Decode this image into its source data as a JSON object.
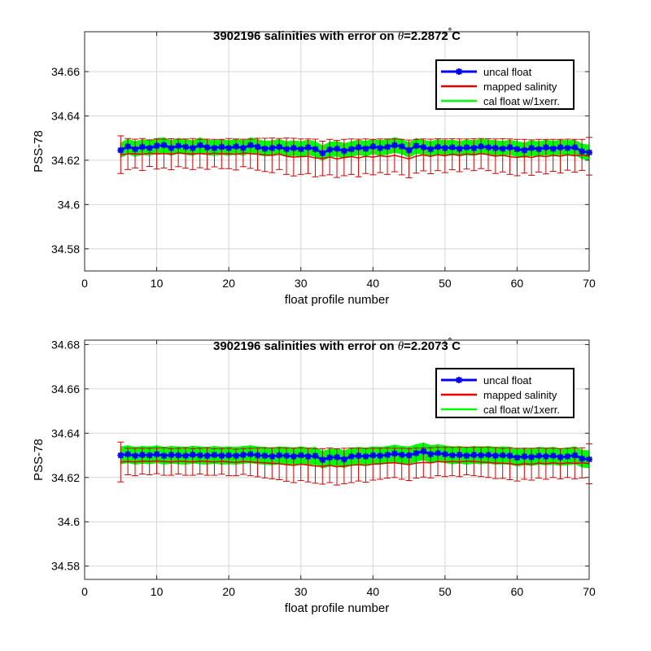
{
  "chart_data": [
    {
      "type": "line",
      "title_prefix": "3902196 salinities with error on ",
      "title_symbol": "θ",
      "title_value": "=2.2872",
      "title_degree": "°",
      "title_unit": "C",
      "xlabel": "float profile number",
      "ylabel": "PSS-78",
      "xlim": [
        0,
        70
      ],
      "ylim": [
        34.57,
        34.678
      ],
      "xticks": [
        0,
        10,
        20,
        30,
        40,
        50,
        60,
        70
      ],
      "xtick_labels": [
        "0",
        "10",
        "20",
        "30",
        "40",
        "50",
        "60",
        "70"
      ],
      "yticks": [
        34.58,
        34.6,
        34.62,
        34.64,
        34.66
      ],
      "ytick_labels": [
        "34.58",
        "34.6",
        "34.62",
        "34.64",
        "34.66"
      ],
      "grid": true,
      "legend_position": "top-right",
      "legend": [
        "uncal float",
        "mapped salinity",
        "cal float w/1xerr."
      ],
      "colors": {
        "uncal": "#0000ff",
        "mapped": "#e60000",
        "cal": "#00ff00"
      },
      "x": [
        5,
        6,
        7,
        8,
        9,
        10,
        11,
        12,
        13,
        14,
        15,
        16,
        17,
        18,
        19,
        20,
        21,
        22,
        23,
        24,
        25,
        26,
        27,
        28,
        29,
        30,
        31,
        32,
        33,
        34,
        35,
        36,
        37,
        38,
        39,
        40,
        41,
        42,
        43,
        44,
        45,
        46,
        47,
        48,
        49,
        50,
        51,
        52,
        53,
        54,
        55,
        56,
        57,
        58,
        59,
        60,
        61,
        62,
        63,
        64,
        65,
        66,
        67,
        68,
        69,
        70
      ],
      "uncal_float": [
        34.6245,
        34.6262,
        34.625,
        34.626,
        34.6255,
        34.6265,
        34.6268,
        34.6255,
        34.6265,
        34.626,
        34.6255,
        34.6268,
        34.6258,
        34.6255,
        34.626,
        34.6255,
        34.6262,
        34.6255,
        34.6268,
        34.626,
        34.6252,
        34.6255,
        34.626,
        34.625,
        34.6255,
        34.625,
        34.6258,
        34.625,
        34.6232,
        34.6248,
        34.6252,
        34.6242,
        34.625,
        34.6258,
        34.6252,
        34.6262,
        34.6255,
        34.626,
        34.6268,
        34.6262,
        34.6245,
        34.6265,
        34.6258,
        34.625,
        34.626,
        34.6255,
        34.6258,
        34.6252,
        34.6258,
        34.6255,
        34.6262,
        34.6258,
        34.6255,
        34.6252,
        34.6258,
        34.625,
        34.6245,
        34.6255,
        34.625,
        34.6258,
        34.6252,
        34.6258,
        34.6255,
        34.6258,
        34.624,
        34.6235
      ],
      "mapped_salinity": [
        34.6225,
        34.6228,
        34.623,
        34.6226,
        34.6232,
        34.6228,
        34.623,
        34.6227,
        34.6233,
        34.623,
        34.6228,
        34.623,
        34.6227,
        34.6232,
        34.6228,
        34.623,
        34.6226,
        34.6233,
        34.6229,
        34.6227,
        34.6224,
        34.6222,
        34.6228,
        34.6218,
        34.6214,
        34.6216,
        34.6218,
        34.621,
        34.6208,
        34.6214,
        34.6206,
        34.6212,
        34.6216,
        34.621,
        34.6218,
        34.6214,
        34.622,
        34.6216,
        34.6222,
        34.6214,
        34.6206,
        34.6218,
        34.6224,
        34.6217,
        34.6225,
        34.622,
        34.6227,
        34.6222,
        34.6228,
        34.6225,
        34.623,
        34.6225,
        34.6218,
        34.6222,
        34.6216,
        34.6212,
        34.6218,
        34.6212,
        34.622,
        34.6216,
        34.6222,
        34.6218,
        34.6225,
        34.622,
        34.6224,
        34.6218
      ],
      "cal_float": [
        34.6245,
        34.6262,
        34.625,
        34.626,
        34.6255,
        34.6265,
        34.6268,
        34.6255,
        34.6265,
        34.626,
        34.6255,
        34.6268,
        34.6258,
        34.6255,
        34.626,
        34.6255,
        34.6262,
        34.6255,
        34.6268,
        34.626,
        34.6252,
        34.6255,
        34.626,
        34.625,
        34.6255,
        34.625,
        34.6258,
        34.625,
        34.6232,
        34.6248,
        34.6252,
        34.6242,
        34.625,
        34.6258,
        34.6252,
        34.6262,
        34.6255,
        34.626,
        34.6268,
        34.6262,
        34.6245,
        34.6265,
        34.6258,
        34.625,
        34.626,
        34.6255,
        34.6258,
        34.6252,
        34.6258,
        34.6255,
        34.6262,
        34.6258,
        34.6255,
        34.6252,
        34.6258,
        34.625,
        34.6245,
        34.6255,
        34.625,
        34.6258,
        34.6252,
        34.6258,
        34.6255,
        34.6258,
        34.624,
        34.6235
      ],
      "cal_error": 0.0035,
      "mapped_error": [
        0.0085,
        0.007,
        0.0065,
        0.0072,
        0.006,
        0.0068,
        0.0065,
        0.007,
        0.0062,
        0.0066,
        0.007,
        0.0064,
        0.0068,
        0.0062,
        0.0066,
        0.0068,
        0.007,
        0.0062,
        0.0066,
        0.0072,
        0.0075,
        0.0078,
        0.007,
        0.0082,
        0.0085,
        0.008,
        0.0078,
        0.0085,
        0.0078,
        0.008,
        0.0084,
        0.0082,
        0.008,
        0.0085,
        0.0078,
        0.008,
        0.0076,
        0.008,
        0.0074,
        0.008,
        0.0085,
        0.0076,
        0.0072,
        0.0078,
        0.0072,
        0.0076,
        0.007,
        0.0074,
        0.0068,
        0.0072,
        0.0068,
        0.0072,
        0.0078,
        0.0075,
        0.008,
        0.0082,
        0.0076,
        0.008,
        0.0074,
        0.0078,
        0.0072,
        0.0076,
        0.007,
        0.0074,
        0.007,
        0.0085
      ]
    },
    {
      "type": "line",
      "title_prefix": "3902196 salinities with error on ",
      "title_symbol": "θ",
      "title_value": "=2.2073",
      "title_degree": "°",
      "title_unit": "C",
      "xlabel": "float profile number",
      "ylabel": "PSS-78",
      "xlim": [
        0,
        70
      ],
      "ylim": [
        34.574,
        34.682
      ],
      "xticks": [
        0,
        10,
        20,
        30,
        40,
        50,
        60,
        70
      ],
      "xtick_labels": [
        "0",
        "10",
        "20",
        "30",
        "40",
        "50",
        "60",
        "70"
      ],
      "yticks": [
        34.58,
        34.6,
        34.62,
        34.64,
        34.66,
        34.68
      ],
      "ytick_labels": [
        "34.58",
        "34.6",
        "34.62",
        "34.64",
        "34.66",
        "34.68"
      ],
      "grid": true,
      "legend_position": "top-right",
      "legend": [
        "uncal float",
        "mapped salinity",
        "cal float w/1xerr."
      ],
      "colors": {
        "uncal": "#0000ff",
        "mapped": "#e60000",
        "cal": "#00ff00"
      },
      "x": [
        5,
        6,
        7,
        8,
        9,
        10,
        11,
        12,
        13,
        14,
        15,
        16,
        17,
        18,
        19,
        20,
        21,
        22,
        23,
        24,
        25,
        26,
        27,
        28,
        29,
        30,
        31,
        32,
        33,
        34,
        35,
        36,
        37,
        38,
        39,
        40,
        41,
        42,
        43,
        44,
        45,
        46,
        47,
        48,
        49,
        50,
        51,
        52,
        53,
        54,
        55,
        56,
        57,
        58,
        59,
        60,
        61,
        62,
        63,
        64,
        65,
        66,
        67,
        68,
        69,
        70
      ],
      "uncal_float": [
        34.63,
        34.6305,
        34.6298,
        34.6302,
        34.63,
        34.6305,
        34.6298,
        34.6302,
        34.63,
        34.6298,
        34.6303,
        34.63,
        34.6298,
        34.6302,
        34.6298,
        34.63,
        34.6298,
        34.6302,
        34.6305,
        34.63,
        34.6298,
        34.6295,
        34.63,
        34.6298,
        34.6295,
        34.63,
        34.6295,
        34.6298,
        34.628,
        34.629,
        34.6292,
        34.6282,
        34.6295,
        34.6298,
        34.6295,
        34.63,
        34.6298,
        34.6302,
        34.6308,
        34.6302,
        34.63,
        34.631,
        34.6318,
        34.6305,
        34.631,
        34.6305,
        34.63,
        34.6302,
        34.6298,
        34.6302,
        34.63,
        34.6302,
        34.6298,
        34.63,
        34.6298,
        34.629,
        34.6295,
        34.6292,
        34.6298,
        34.6295,
        34.6298,
        34.6292,
        34.6295,
        34.63,
        34.6285,
        34.6282
      ],
      "mapped_salinity": [
        34.627,
        34.6272,
        34.627,
        34.6274,
        34.6272,
        34.6275,
        34.6272,
        34.627,
        34.6274,
        34.6272,
        34.627,
        34.6274,
        34.6272,
        34.627,
        34.6273,
        34.627,
        34.6268,
        34.6272,
        34.627,
        34.6268,
        34.6266,
        34.6264,
        34.6262,
        34.6258,
        34.6255,
        34.626,
        34.6256,
        34.6252,
        34.625,
        34.6255,
        34.6248,
        34.6252,
        34.6255,
        34.6258,
        34.6255,
        34.626,
        34.6262,
        34.6265,
        34.6266,
        34.6262,
        34.6258,
        34.6265,
        34.6268,
        34.6266,
        34.6272,
        34.627,
        34.6272,
        34.627,
        34.6274,
        34.6272,
        34.627,
        34.6268,
        34.6265,
        34.6264,
        34.6262,
        34.6258,
        34.6262,
        34.626,
        34.6265,
        34.6262,
        34.6266,
        34.6262,
        34.6266,
        34.6264,
        34.6266,
        34.6262
      ],
      "cal_float": [
        34.63,
        34.6305,
        34.6298,
        34.6302,
        34.63,
        34.6305,
        34.6298,
        34.6302,
        34.63,
        34.6298,
        34.6303,
        34.63,
        34.6298,
        34.6302,
        34.6298,
        34.63,
        34.6298,
        34.6302,
        34.6305,
        34.63,
        34.6298,
        34.6295,
        34.63,
        34.6298,
        34.6295,
        34.63,
        34.6295,
        34.6298,
        34.628,
        34.629,
        34.6292,
        34.6282,
        34.6295,
        34.6298,
        34.6295,
        34.63,
        34.6298,
        34.6302,
        34.6308,
        34.6302,
        34.63,
        34.631,
        34.6318,
        34.6305,
        34.631,
        34.6305,
        34.63,
        34.6302,
        34.6298,
        34.6302,
        34.63,
        34.6302,
        34.6298,
        34.63,
        34.6298,
        34.629,
        34.6295,
        34.6292,
        34.6298,
        34.6295,
        34.6298,
        34.6292,
        34.6295,
        34.63,
        34.6285,
        34.6282
      ],
      "cal_error": 0.004,
      "mapped_error": [
        0.009,
        0.006,
        0.0062,
        0.0058,
        0.006,
        0.0058,
        0.0062,
        0.006,
        0.0058,
        0.0062,
        0.006,
        0.0058,
        0.0062,
        0.006,
        0.0058,
        0.0062,
        0.006,
        0.0058,
        0.0062,
        0.0065,
        0.0068,
        0.007,
        0.0072,
        0.0075,
        0.0078,
        0.0074,
        0.0076,
        0.0078,
        0.008,
        0.0078,
        0.0082,
        0.008,
        0.0078,
        0.0074,
        0.0076,
        0.0072,
        0.007,
        0.0068,
        0.0066,
        0.007,
        0.0072,
        0.0068,
        0.0066,
        0.0068,
        0.0064,
        0.0066,
        0.0064,
        0.0066,
        0.0062,
        0.0064,
        0.0066,
        0.0068,
        0.007,
        0.0068,
        0.0072,
        0.0074,
        0.007,
        0.0072,
        0.0068,
        0.007,
        0.0066,
        0.0068,
        0.0066,
        0.007,
        0.0068,
        0.009
      ]
    }
  ]
}
